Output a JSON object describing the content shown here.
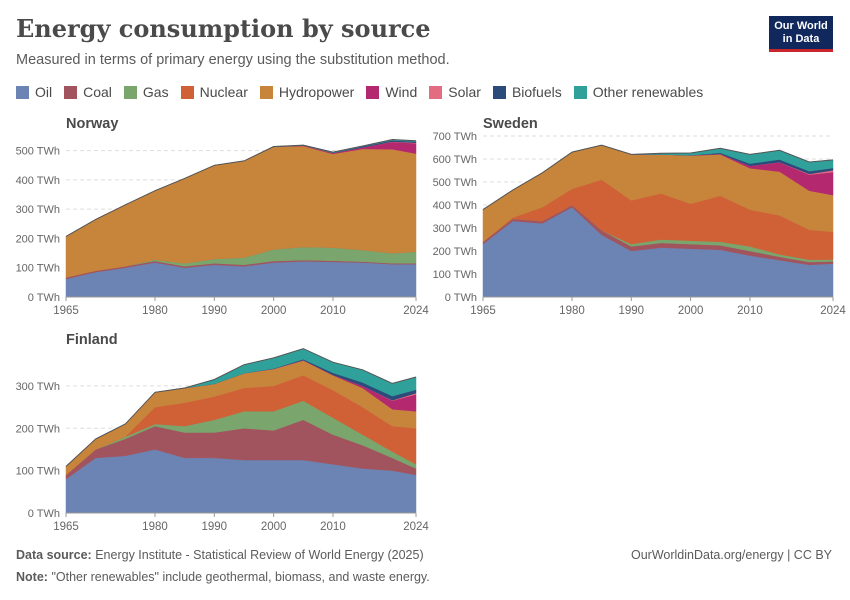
{
  "header": {
    "title": "Energy consumption by source",
    "subtitle": "Measured in terms of primary energy using the substitution method."
  },
  "logo": {
    "line1": "Our World",
    "line2": "in Data"
  },
  "legend": [
    {
      "label": "Oil",
      "color": "#6b84b3"
    },
    {
      "label": "Coal",
      "color": "#a2545e"
    },
    {
      "label": "Gas",
      "color": "#7aa56d"
    },
    {
      "label": "Nuclear",
      "color": "#d06036"
    },
    {
      "label": "Hydropower",
      "color": "#c7843b"
    },
    {
      "label": "Wind",
      "color": "#b3286f"
    },
    {
      "label": "Solar",
      "color": "#e36b82"
    },
    {
      "label": "Biofuels",
      "color": "#2c4a7a"
    },
    {
      "label": "Other renewables",
      "color": "#2fa19a"
    }
  ],
  "footer": {
    "source_label": "Data source:",
    "source": "Energy Institute - Statistical Review of World Energy (2025)",
    "note_label": "Note:",
    "note": "\"Other renewables\" include geothermal, biomass, and waste energy.",
    "credit": "OurWorldinData.org/energy | CC BY"
  },
  "chart_data": [
    {
      "type": "area",
      "title": "Norway",
      "unit": "TWh",
      "x": [
        1965,
        1970,
        1975,
        1980,
        1985,
        1990,
        1995,
        2000,
        2005,
        2010,
        2015,
        2020,
        2024
      ],
      "ylim": [
        0,
        550
      ],
      "yticks": [
        0,
        100,
        200,
        300,
        400,
        500
      ],
      "xticks": [
        1965,
        1980,
        1990,
        2000,
        2010,
        2024
      ],
      "series": [
        {
          "name": "Oil",
          "values": [
            62,
            85,
            100,
            118,
            100,
            110,
            105,
            118,
            122,
            120,
            118,
            112,
            112
          ]
        },
        {
          "name": "Coal",
          "values": [
            5,
            5,
            5,
            5,
            5,
            5,
            5,
            5,
            4,
            4,
            3,
            3,
            3
          ]
        },
        {
          "name": "Gas",
          "values": [
            0,
            0,
            0,
            5,
            10,
            15,
            25,
            40,
            45,
            45,
            40,
            35,
            40
          ]
        },
        {
          "name": "Nuclear",
          "values": [
            0,
            0,
            0,
            0,
            0,
            0,
            0,
            0,
            0,
            0,
            0,
            0,
            0
          ]
        },
        {
          "name": "Hydropower",
          "values": [
            140,
            175,
            210,
            235,
            290,
            320,
            330,
            350,
            345,
            320,
            345,
            355,
            335
          ]
        },
        {
          "name": "Wind",
          "values": [
            0,
            0,
            0,
            0,
            0,
            0,
            0,
            0,
            2,
            3,
            5,
            25,
            35
          ]
        },
        {
          "name": "Solar",
          "values": [
            0,
            0,
            0,
            0,
            0,
            0,
            0,
            0,
            0,
            0,
            0,
            1,
            2
          ]
        },
        {
          "name": "Biofuels",
          "values": [
            0,
            0,
            0,
            0,
            0,
            0,
            0,
            0,
            0,
            1,
            3,
            4,
            4
          ]
        },
        {
          "name": "Other renewables",
          "values": [
            0,
            0,
            0,
            0,
            0,
            0,
            0,
            1,
            1,
            2,
            2,
            3,
            3
          ]
        }
      ]
    },
    {
      "type": "area",
      "title": "Sweden",
      "unit": "TWh",
      "x": [
        1965,
        1970,
        1975,
        1980,
        1985,
        1990,
        1995,
        2000,
        2005,
        2010,
        2015,
        2020,
        2024
      ],
      "ylim": [
        0,
        700
      ],
      "yticks": [
        0,
        100,
        200,
        300,
        400,
        500,
        600,
        700
      ],
      "xticks": [
        1965,
        1980,
        1990,
        2000,
        2010,
        2024
      ],
      "series": [
        {
          "name": "Oil",
          "values": [
            230,
            330,
            320,
            390,
            270,
            200,
            215,
            210,
            205,
            180,
            160,
            140,
            145
          ]
        },
        {
          "name": "Coal",
          "values": [
            10,
            10,
            10,
            10,
            20,
            20,
            20,
            20,
            20,
            20,
            15,
            12,
            10
          ]
        },
        {
          "name": "Gas",
          "values": [
            0,
            0,
            0,
            0,
            0,
            10,
            15,
            15,
            15,
            20,
            10,
            10,
            8
          ]
        },
        {
          "name": "Nuclear",
          "values": [
            0,
            5,
            60,
            70,
            220,
            190,
            200,
            160,
            200,
            160,
            170,
            130,
            120
          ]
        },
        {
          "name": "Hydropower",
          "values": [
            140,
            120,
            150,
            160,
            150,
            200,
            170,
            210,
            180,
            180,
            190,
            170,
            160
          ]
        },
        {
          "name": "Wind",
          "values": [
            0,
            0,
            0,
            0,
            0,
            0,
            0,
            1,
            2,
            10,
            40,
            70,
            100
          ]
        },
        {
          "name": "Solar",
          "values": [
            0,
            0,
            0,
            0,
            0,
            0,
            0,
            0,
            0,
            0,
            1,
            3,
            8
          ]
        },
        {
          "name": "Biofuels",
          "values": [
            0,
            0,
            0,
            0,
            0,
            0,
            0,
            0,
            5,
            10,
            12,
            12,
            10
          ]
        },
        {
          "name": "Other renewables",
          "values": [
            0,
            0,
            0,
            0,
            0,
            0,
            5,
            10,
            20,
            40,
            40,
            40,
            35
          ]
        }
      ]
    },
    {
      "type": "area",
      "title": "Finland",
      "unit": "TWh",
      "x": [
        1965,
        1970,
        1975,
        1980,
        1985,
        1990,
        1995,
        2000,
        2005,
        2010,
        2015,
        2020,
        2024
      ],
      "ylim": [
        0,
        380
      ],
      "yticks": [
        0,
        100,
        200,
        300
      ],
      "xticks": [
        1965,
        1980,
        1990,
        2000,
        2010,
        2024
      ],
      "series": [
        {
          "name": "Oil",
          "values": [
            80,
            130,
            135,
            150,
            130,
            130,
            125,
            125,
            125,
            115,
            105,
            100,
            90
          ]
        },
        {
          "name": "Coal",
          "values": [
            10,
            20,
            40,
            55,
            60,
            60,
            75,
            70,
            95,
            70,
            55,
            30,
            15
          ]
        },
        {
          "name": "Gas",
          "values": [
            0,
            0,
            5,
            5,
            15,
            30,
            40,
            45,
            45,
            40,
            25,
            15,
            10
          ]
        },
        {
          "name": "Nuclear",
          "values": [
            0,
            0,
            0,
            40,
            55,
            55,
            55,
            60,
            60,
            65,
            65,
            60,
            85
          ]
        },
        {
          "name": "Hydropower",
          "values": [
            20,
            25,
            30,
            35,
            35,
            30,
            35,
            40,
            35,
            35,
            45,
            40,
            40
          ]
        },
        {
          "name": "Wind",
          "values": [
            0,
            0,
            0,
            0,
            0,
            0,
            0,
            0,
            1,
            1,
            5,
            20,
            40
          ]
        },
        {
          "name": "Solar",
          "values": [
            0,
            0,
            0,
            0,
            0,
            0,
            0,
            0,
            0,
            0,
            0,
            1,
            3
          ]
        },
        {
          "name": "Biofuels",
          "values": [
            0,
            0,
            0,
            0,
            0,
            0,
            0,
            1,
            2,
            5,
            8,
            10,
            8
          ]
        },
        {
          "name": "Other renewables",
          "values": [
            0,
            0,
            0,
            0,
            0,
            10,
            20,
            25,
            25,
            25,
            30,
            30,
            30
          ]
        }
      ]
    }
  ]
}
